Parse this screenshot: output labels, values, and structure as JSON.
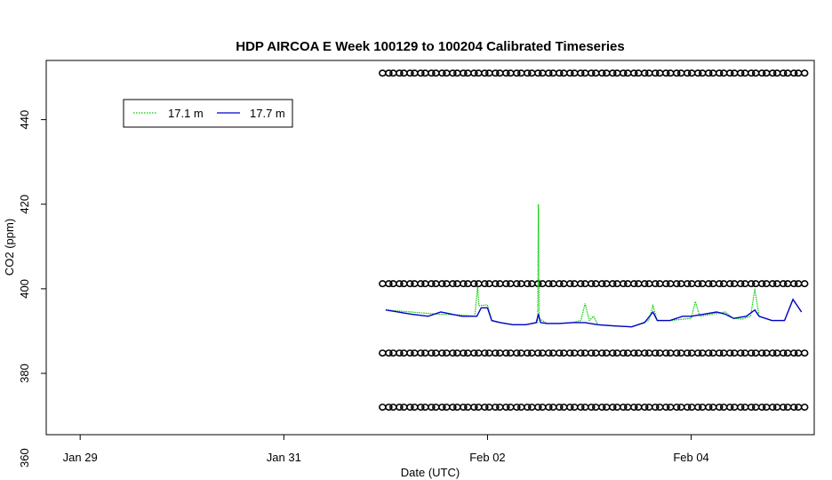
{
  "chart_data": {
    "type": "line",
    "title": "HDP AIRCOA E  Week 100129 to 100204  Calibrated Timeseries",
    "xlabel": "Date (UTC)",
    "ylabel": "CO2 (ppm)",
    "x_unit": "days",
    "xlim": [
      "2010-01-28 16:00",
      "2010-02-05 05:00"
    ],
    "ylim": [
      365.5,
      454
    ],
    "x_ticks": [
      {
        "label": "Jan 29",
        "value": "2010-01-29"
      },
      {
        "label": "Jan 31",
        "value": "2010-01-31"
      },
      {
        "label": "Feb 02",
        "value": "2010-02-02"
      },
      {
        "label": "Feb 04",
        "value": "2010-02-04"
      }
    ],
    "y_ticks": [
      360,
      380,
      400,
      420,
      440
    ],
    "legend": {
      "placement": "top-left",
      "entries": [
        {
          "name": "17.1 m",
          "color": "#00cc00",
          "style": "dotted"
        },
        {
          "name": "17.7 m",
          "color": "#0000cc",
          "style": "solid"
        }
      ]
    },
    "series": [
      {
        "name": "17.1 m",
        "color": "#00cc00",
        "points": [
          [
            "2010-02-01 00:00",
            395.0
          ],
          [
            "2010-02-01 06:00",
            394.5
          ],
          [
            "2010-02-01 12:00",
            394.0
          ],
          [
            "2010-02-01 18:00",
            393.8
          ],
          [
            "2010-02-01 21:00",
            393.5
          ],
          [
            "2010-02-01 21:40",
            400.5
          ],
          [
            "2010-02-01 22:00",
            396.0
          ],
          [
            "2010-02-02 00:00",
            396.2
          ],
          [
            "2010-02-02 01:00",
            392.5
          ],
          [
            "2010-02-02 03:00",
            392.0
          ],
          [
            "2010-02-02 06:00",
            391.5
          ],
          [
            "2010-02-02 09:00",
            391.5
          ],
          [
            "2010-02-02 11:50",
            392.0
          ],
          [
            "2010-02-02 12:00",
            420.0
          ],
          [
            "2010-02-02 12:10",
            393.0
          ],
          [
            "2010-02-02 14:00",
            391.8
          ],
          [
            "2010-02-02 17:00",
            391.8
          ],
          [
            "2010-02-02 20:00",
            392.0
          ],
          [
            "2010-02-02 22:00",
            392.5
          ],
          [
            "2010-02-02 23:00",
            396.5
          ],
          [
            "2010-02-03 00:00",
            392.5
          ],
          [
            "2010-02-03 01:00",
            393.5
          ],
          [
            "2010-02-03 02:00",
            391.5
          ],
          [
            "2010-02-03 06:00",
            391.2
          ],
          [
            "2010-02-03 10:00",
            391.0
          ],
          [
            "2010-02-03 14:00",
            392.5
          ],
          [
            "2010-02-03 15:00",
            396.0
          ],
          [
            "2010-02-03 16:00",
            392.5
          ],
          [
            "2010-02-03 19:00",
            392.5
          ],
          [
            "2010-02-03 22:00",
            392.8
          ],
          [
            "2010-02-04 00:00",
            393.0
          ],
          [
            "2010-02-04 01:00",
            397.0
          ],
          [
            "2010-02-04 02:00",
            393.5
          ],
          [
            "2010-02-04 05:00",
            394.0
          ],
          [
            "2010-02-04 08:00",
            394.5
          ],
          [
            "2010-02-04 10:00",
            393.0
          ],
          [
            "2010-02-04 12:00",
            392.8
          ],
          [
            "2010-02-04 14:00",
            393.5
          ],
          [
            "2010-02-04 15:00",
            400.0
          ],
          [
            "2010-02-04 16:00",
            393.5
          ],
          [
            "2010-02-04 19:00",
            392.5
          ],
          [
            "2010-02-04 22:00",
            392.5
          ],
          [
            "2010-02-05 00:00",
            397.5
          ],
          [
            "2010-02-05 01:00",
            396.0
          ],
          [
            "2010-02-05 02:00",
            394.5
          ]
        ]
      },
      {
        "name": "17.7 m",
        "color": "#0000cc",
        "points": [
          [
            "2010-02-01 00:00",
            395.0
          ],
          [
            "2010-02-01 06:00",
            394.0
          ],
          [
            "2010-02-01 10:00",
            393.5
          ],
          [
            "2010-02-01 13:00",
            394.5
          ],
          [
            "2010-02-01 18:00",
            393.5
          ],
          [
            "2010-02-01 21:30",
            393.5
          ],
          [
            "2010-02-01 22:30",
            395.5
          ],
          [
            "2010-02-02 00:00",
            395.5
          ],
          [
            "2010-02-02 01:00",
            392.5
          ],
          [
            "2010-02-02 03:00",
            392.0
          ],
          [
            "2010-02-02 06:00",
            391.5
          ],
          [
            "2010-02-02 09:00",
            391.5
          ],
          [
            "2010-02-02 11:30",
            392.0
          ],
          [
            "2010-02-02 12:00",
            394.0
          ],
          [
            "2010-02-02 12:30",
            392.0
          ],
          [
            "2010-02-02 14:00",
            391.8
          ],
          [
            "2010-02-02 17:00",
            391.8
          ],
          [
            "2010-02-02 20:00",
            392.0
          ],
          [
            "2010-02-02 23:00",
            392.0
          ],
          [
            "2010-02-03 02:00",
            391.5
          ],
          [
            "2010-02-03 06:00",
            391.2
          ],
          [
            "2010-02-03 10:00",
            391.0
          ],
          [
            "2010-02-03 13:00",
            392.0
          ],
          [
            "2010-02-03 15:00",
            394.5
          ],
          [
            "2010-02-03 16:00",
            392.5
          ],
          [
            "2010-02-03 19:00",
            392.5
          ],
          [
            "2010-02-03 22:00",
            393.5
          ],
          [
            "2010-02-04 00:00",
            393.5
          ],
          [
            "2010-02-04 03:00",
            394.0
          ],
          [
            "2010-02-04 06:00",
            394.5
          ],
          [
            "2010-02-04 08:00",
            394.0
          ],
          [
            "2010-02-04 10:00",
            393.0
          ],
          [
            "2010-02-04 13:00",
            393.5
          ],
          [
            "2010-02-04 15:00",
            395.0
          ],
          [
            "2010-02-04 16:00",
            393.5
          ],
          [
            "2010-02-04 19:00",
            392.5
          ],
          [
            "2010-02-04 22:00",
            392.5
          ],
          [
            "2010-02-05 00:00",
            397.5
          ],
          [
            "2010-02-05 01:00",
            396.0
          ],
          [
            "2010-02-05 02:00",
            394.5
          ]
        ]
      },
      {
        "name": "calibration-451",
        "marker": "open-circle",
        "x_range": [
          "2010-02-01 00:00",
          "2010-02-05 02:00"
        ],
        "y": 451,
        "count": 40
      },
      {
        "name": "calibration-401",
        "marker": "open-circle",
        "x_range": [
          "2010-02-01 00:00",
          "2010-02-05 02:00"
        ],
        "y": 401.2,
        "count": 40
      },
      {
        "name": "calibration-385",
        "marker": "open-circle",
        "x_range": [
          "2010-02-01 00:00",
          "2010-02-05 02:00"
        ],
        "y": 384.8,
        "count": 40
      },
      {
        "name": "calibration-372",
        "marker": "open-circle",
        "x_range": [
          "2010-02-01 00:00",
          "2010-02-05 02:00"
        ],
        "y": 372,
        "count": 40
      }
    ]
  }
}
